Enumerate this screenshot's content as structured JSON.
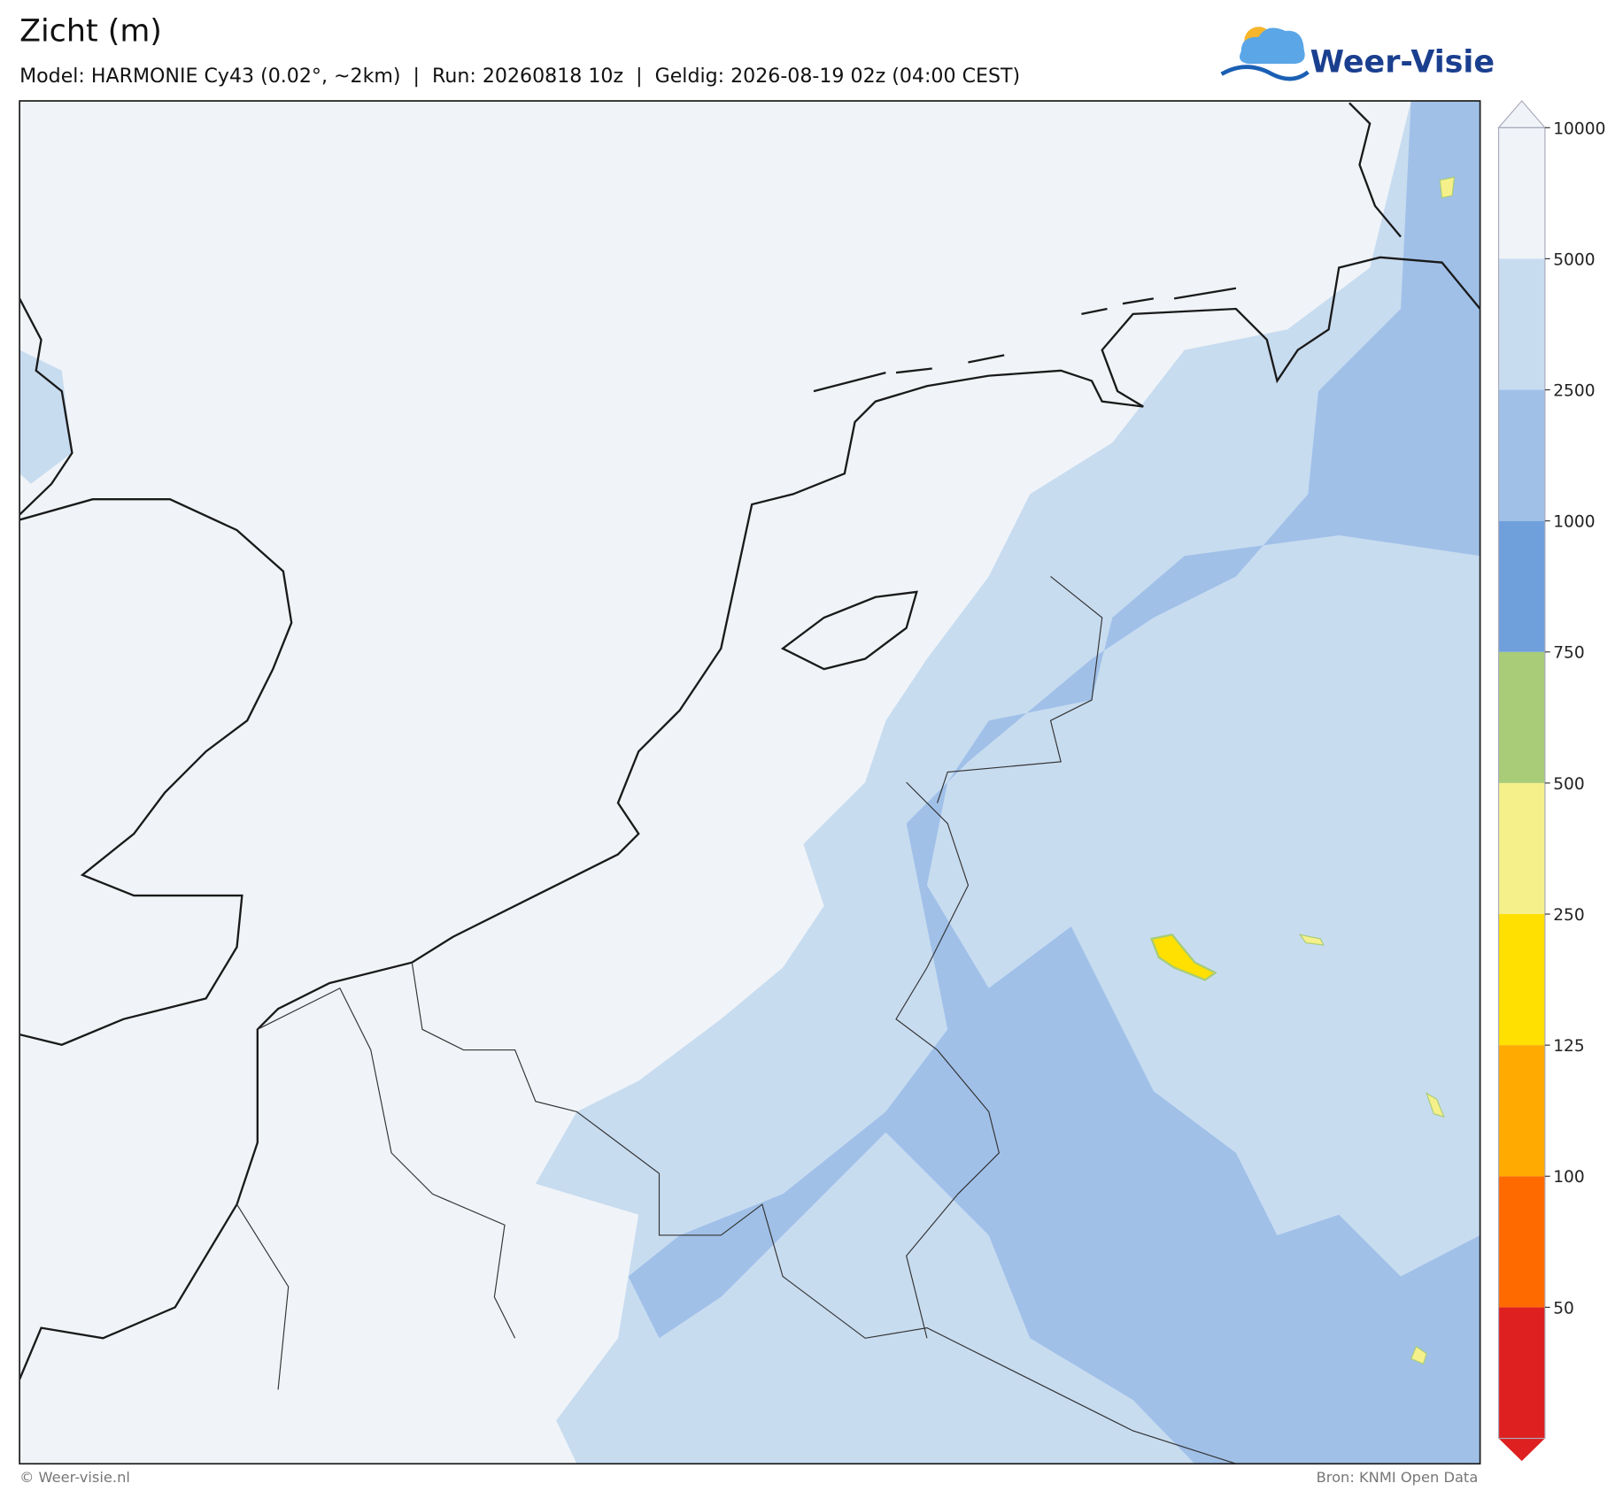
{
  "header": {
    "title": "Zicht (m)",
    "subtitle": "Model: HARMONIE Cy43 (0.02°, ~2km)  |  Run: 20260818 10z  |  Geldig: 2026-08-19 02z (04:00 CEST)"
  },
  "logo": {
    "text": "Weer-Visie"
  },
  "colorbar": {
    "levels": [
      50,
      100,
      125,
      250,
      500,
      750,
      1000,
      2500,
      5000,
      10000
    ],
    "colors": [
      "#de2020",
      "#ff6a00",
      "#ffaa00",
      "#ffe000",
      "#f5f08a",
      "#a8cc78",
      "#6fa0dc",
      "#a0c0e8",
      "#c8dcf0",
      "#f0f4f8",
      "#f0f4f8"
    ]
  },
  "footer": {
    "left": "© Weer-visie.nl",
    "right": "Bron: KNMI Open Data"
  }
}
